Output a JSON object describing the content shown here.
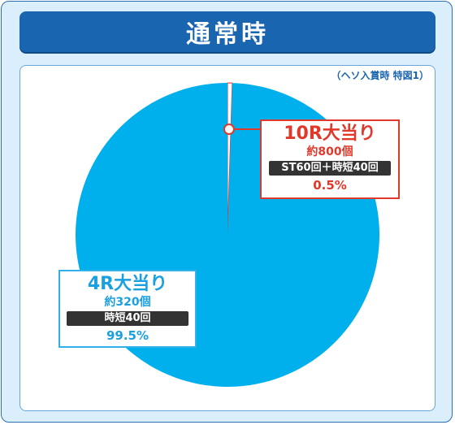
{
  "title": "通常時",
  "note": "（ヘソ入賞時 特図1）",
  "colors": {
    "frame_bg": "#dbeefb",
    "title_bg": "#1a65b0",
    "slice_4r": "#00b0ec",
    "slice_10r": "#ffffff",
    "accent_red": "#e0392b",
    "accent_blue": "#1aa0e0"
  },
  "chart_data": {
    "type": "pie",
    "slices": [
      {
        "name": "10R大当り",
        "count": "約800個",
        "tag": "ST60回＋時短40回",
        "value": 0.5,
        "value_label": "0.5%"
      },
      {
        "name": "4R大当り",
        "count": "約320個",
        "tag": "時短40回",
        "value": 99.5,
        "value_label": "99.5%"
      }
    ]
  }
}
